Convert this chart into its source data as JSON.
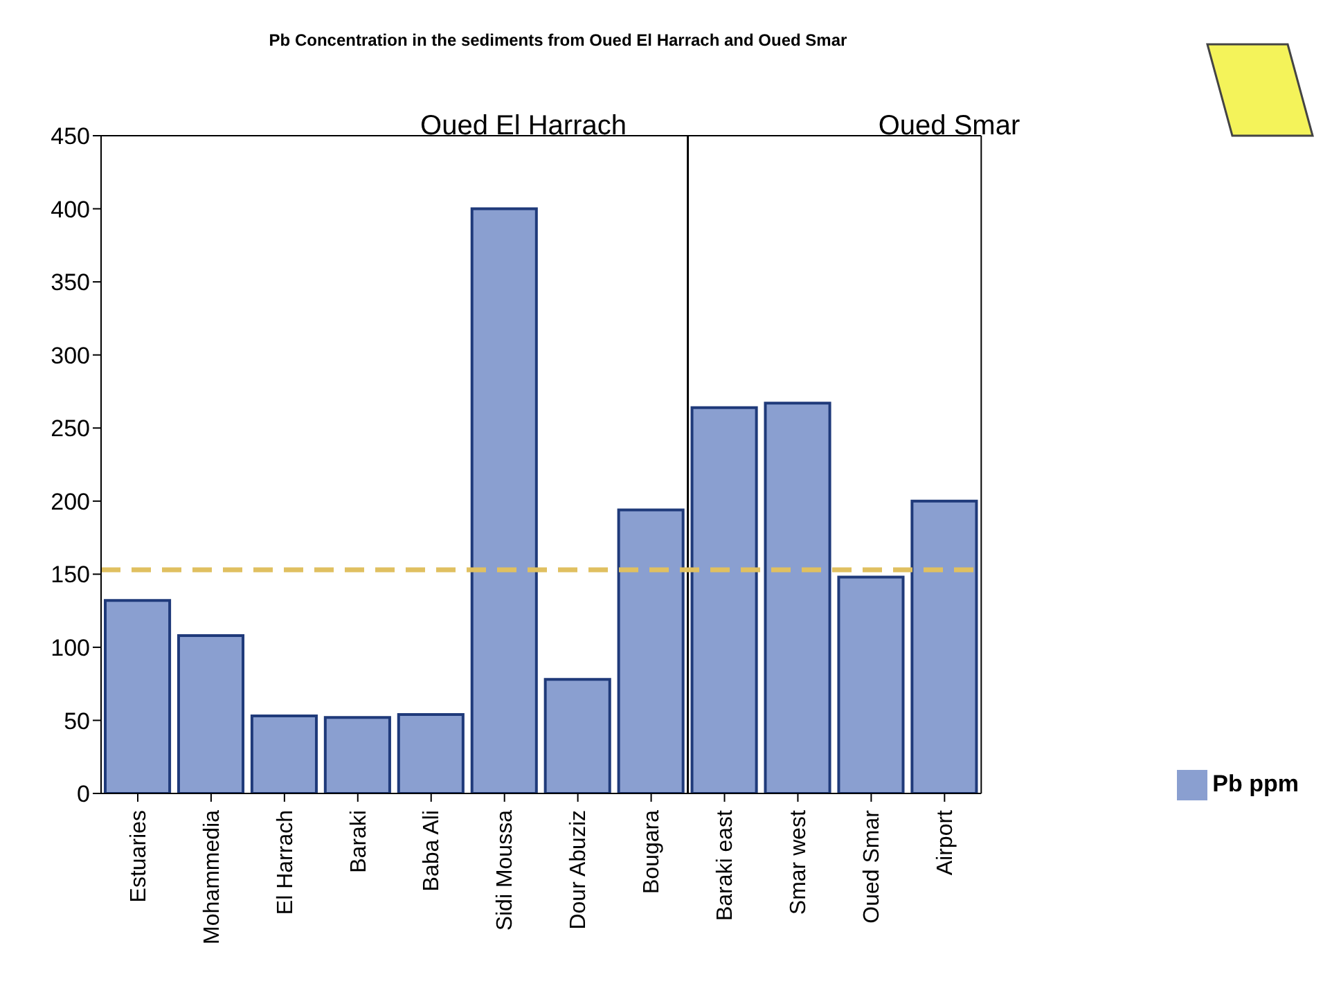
{
  "chart_data": {
    "type": "bar",
    "title": "Pb Concentration in the sediments from Oued El Harrach and Oued Smar",
    "categories": [
      "Estuaries",
      "Mohammedia",
      "El Harrach",
      "Baraki",
      "Baba Ali",
      "Sidi Moussa",
      "Dour Abuziz",
      "Bougara",
      "Baraki east",
      "Smar west",
      "Oued Smar",
      "Airport"
    ],
    "series": [
      {
        "name": "Pb ppm",
        "color": "#8a9fd0",
        "values": [
          132,
          108,
          53,
          52,
          54,
          400,
          78,
          194,
          264,
          267,
          148,
          200
        ]
      }
    ],
    "ylim": [
      0,
      450
    ],
    "yticks": [
      0,
      50,
      100,
      150,
      200,
      250,
      300,
      350,
      400,
      450
    ],
    "ref_lines": [
      {
        "axis": "y",
        "value": 153,
        "color": "#e0c060",
        "line_style": "dashed"
      }
    ],
    "annotations": [
      "Oued El Harrach",
      "Oued Smar"
    ],
    "legend": "bottom right"
  }
}
